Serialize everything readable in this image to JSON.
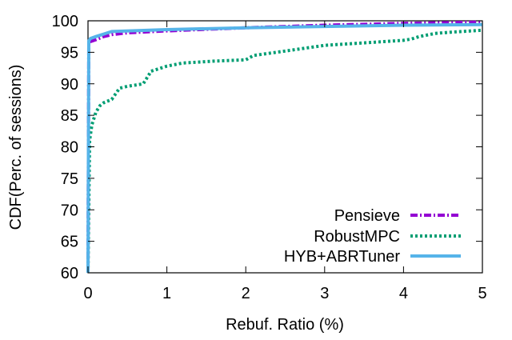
{
  "chart_data": {
    "type": "line",
    "title": "",
    "xlabel": "Rebuf. Ratio (%)",
    "ylabel": "CDF(Perc. of sessions)",
    "xlim": [
      0,
      5
    ],
    "ylim": [
      60,
      100
    ],
    "x_ticks": [
      0,
      1,
      2,
      3,
      4,
      5
    ],
    "y_ticks": [
      60,
      65,
      70,
      75,
      80,
      85,
      90,
      95,
      100
    ],
    "grid": false,
    "legend_position": "bottom-right",
    "series": [
      {
        "name": "Pensieve",
        "color": "#9400d3",
        "line_style": "dash-dot",
        "x": [
          0,
          0.01,
          0.03,
          0.1,
          0.2,
          0.3,
          0.5,
          1.0,
          2.0,
          3.0,
          4.0,
          4.5,
          5.0
        ],
        "y": [
          60,
          96.5,
          96.7,
          97.0,
          97.5,
          97.8,
          98.1,
          98.4,
          98.9,
          99.3,
          99.6,
          99.7,
          99.8
        ]
      },
      {
        "name": "RobustMPC",
        "color": "#009e73",
        "line_style": "dotted",
        "x": [
          0,
          0.02,
          0.05,
          0.1,
          0.15,
          0.2,
          0.3,
          0.4,
          0.5,
          0.7,
          0.8,
          1.0,
          1.2,
          1.6,
          2.0,
          2.1,
          2.5,
          3.0,
          3.5,
          4.0,
          4.1,
          4.2,
          4.4,
          4.6,
          5.0
        ],
        "y": [
          60,
          81,
          83.5,
          85.5,
          86.5,
          87,
          87.5,
          89.3,
          89.6,
          90,
          92,
          92.8,
          93.3,
          93.6,
          93.8,
          94.5,
          95.2,
          96.1,
          96.5,
          96.9,
          97.1,
          97.5,
          98,
          98.2,
          98.5
        ]
      },
      {
        "name": "HYB+ABRTuner",
        "color": "#56b4e9",
        "line_style": "solid",
        "x": [
          0,
          0.01,
          0.03,
          0.1,
          0.3,
          1.0,
          2.0,
          3.0,
          4.0,
          5.0
        ],
        "y": [
          60,
          96.8,
          97.2,
          97.5,
          98.3,
          98.6,
          98.9,
          99.1,
          99.3,
          99.4
        ]
      }
    ]
  }
}
